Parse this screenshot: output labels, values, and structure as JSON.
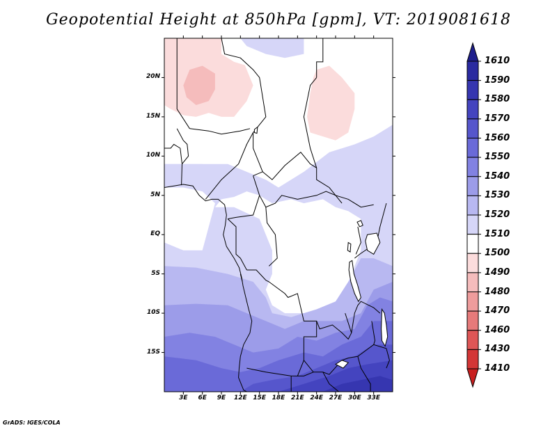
{
  "title": "Geopotential Height at 850hPa [gpm], VT: 2019081618",
  "credit": "GrADS: IGES/COLA",
  "map": {
    "variable": "Geopotential height",
    "level": "850hPa",
    "units": "gpm",
    "valid_time": "2019081618",
    "region": "Central Africa",
    "extent": {
      "lon_min": 0,
      "lon_max": 36,
      "lat_min": -20,
      "lat_max": 25
    },
    "lat_ticks": [
      "20N",
      "15N",
      "10N",
      "5N",
      "EQ",
      "5S",
      "10S",
      "15S"
    ],
    "lon_ticks": [
      "3E",
      "6E",
      "9E",
      "12E",
      "15E",
      "18E",
      "21E",
      "24E",
      "27E",
      "30E",
      "33E"
    ],
    "features": [
      "country borders",
      "coastline",
      "lakes"
    ]
  },
  "colorbar": {
    "labels": [
      "1610",
      "1590",
      "1580",
      "1570",
      "1560",
      "1550",
      "1540",
      "1530",
      "1520",
      "1510",
      "1500",
      "1490",
      "1480",
      "1470",
      "1460",
      "1430",
      "1410"
    ],
    "colors": [
      "#1e1e8c",
      "#2a2aa0",
      "#3636b0",
      "#4444bf",
      "#5656cc",
      "#6a6ad8",
      "#8282e2",
      "#9c9ce9",
      "#b8b8f1",
      "#d6d6f8",
      "#ffffff",
      "#fbdcdc",
      "#f5bcbc",
      "#ee9c9c",
      "#e67a7a",
      "#de5656",
      "#d33636",
      "#c81f1f"
    ]
  },
  "legend_bands": [
    "1520-1530",
    "1510-1520",
    "1500-1510",
    "1490-1500"
  ]
}
